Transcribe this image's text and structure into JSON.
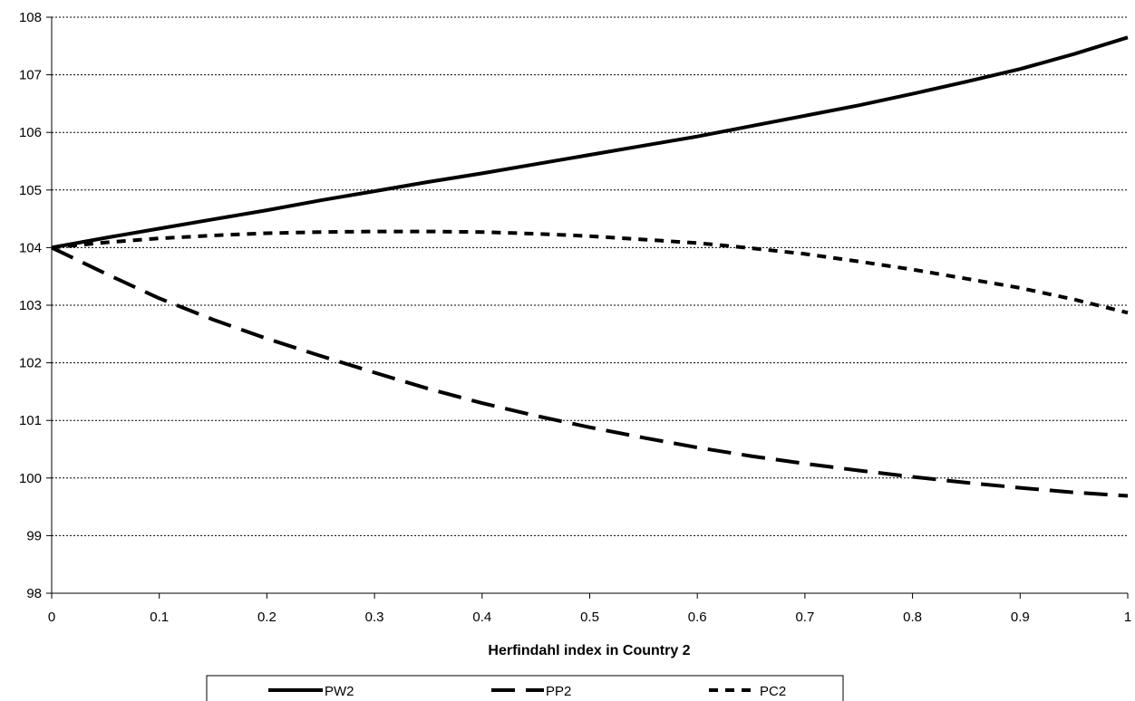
{
  "chart_data": {
    "type": "line",
    "title": "",
    "xlabel": "Herfindahl index in Country 2",
    "ylabel": "",
    "xlim": [
      0,
      1
    ],
    "ylim": [
      98,
      108
    ],
    "x_ticks": [
      0,
      0.1,
      0.2,
      0.3,
      0.4,
      0.5,
      0.6,
      0.7,
      0.8,
      0.9,
      1
    ],
    "x_tick_labels": [
      "0",
      "0.1",
      "0.2",
      "0.3",
      "0.4",
      "0.5",
      "0.6",
      "0.7",
      "0.8",
      "0.9",
      "1"
    ],
    "y_ticks": [
      98,
      99,
      100,
      101,
      102,
      103,
      104,
      105,
      106,
      107,
      108
    ],
    "y_tick_labels": [
      "98",
      "99",
      "100",
      "101",
      "102",
      "103",
      "104",
      "105",
      "106",
      "107",
      "108"
    ],
    "grid": "horizontal dotted",
    "legend_position": "bottom",
    "x": [
      0,
      0.05,
      0.1,
      0.15,
      0.2,
      0.25,
      0.3,
      0.35,
      0.4,
      0.45,
      0.5,
      0.55,
      0.6,
      0.65,
      0.7,
      0.75,
      0.8,
      0.85,
      0.9,
      0.95,
      1
    ],
    "series": [
      {
        "name": "PW2",
        "style": "solid",
        "color": "#000000",
        "values": [
          104.0,
          104.17,
          104.33,
          104.49,
          104.65,
          104.82,
          104.98,
          105.14,
          105.29,
          105.45,
          105.61,
          105.77,
          105.93,
          106.11,
          106.29,
          106.47,
          106.67,
          106.88,
          107.1,
          107.36,
          107.65
        ]
      },
      {
        "name": "PP2",
        "style": "dashed",
        "color": "#000000",
        "values": [
          104.0,
          103.55,
          103.12,
          102.75,
          102.42,
          102.12,
          101.83,
          101.55,
          101.3,
          101.08,
          100.88,
          100.7,
          100.53,
          100.38,
          100.25,
          100.13,
          100.02,
          99.92,
          99.83,
          99.75,
          99.69
        ]
      },
      {
        "name": "PC2",
        "style": "dotted",
        "color": "#000000",
        "values": [
          104.0,
          104.09,
          104.16,
          104.21,
          104.25,
          104.27,
          104.28,
          104.28,
          104.27,
          104.24,
          104.2,
          104.14,
          104.08,
          103.99,
          103.89,
          103.76,
          103.62,
          103.46,
          103.3,
          103.1,
          102.87
        ]
      }
    ]
  }
}
